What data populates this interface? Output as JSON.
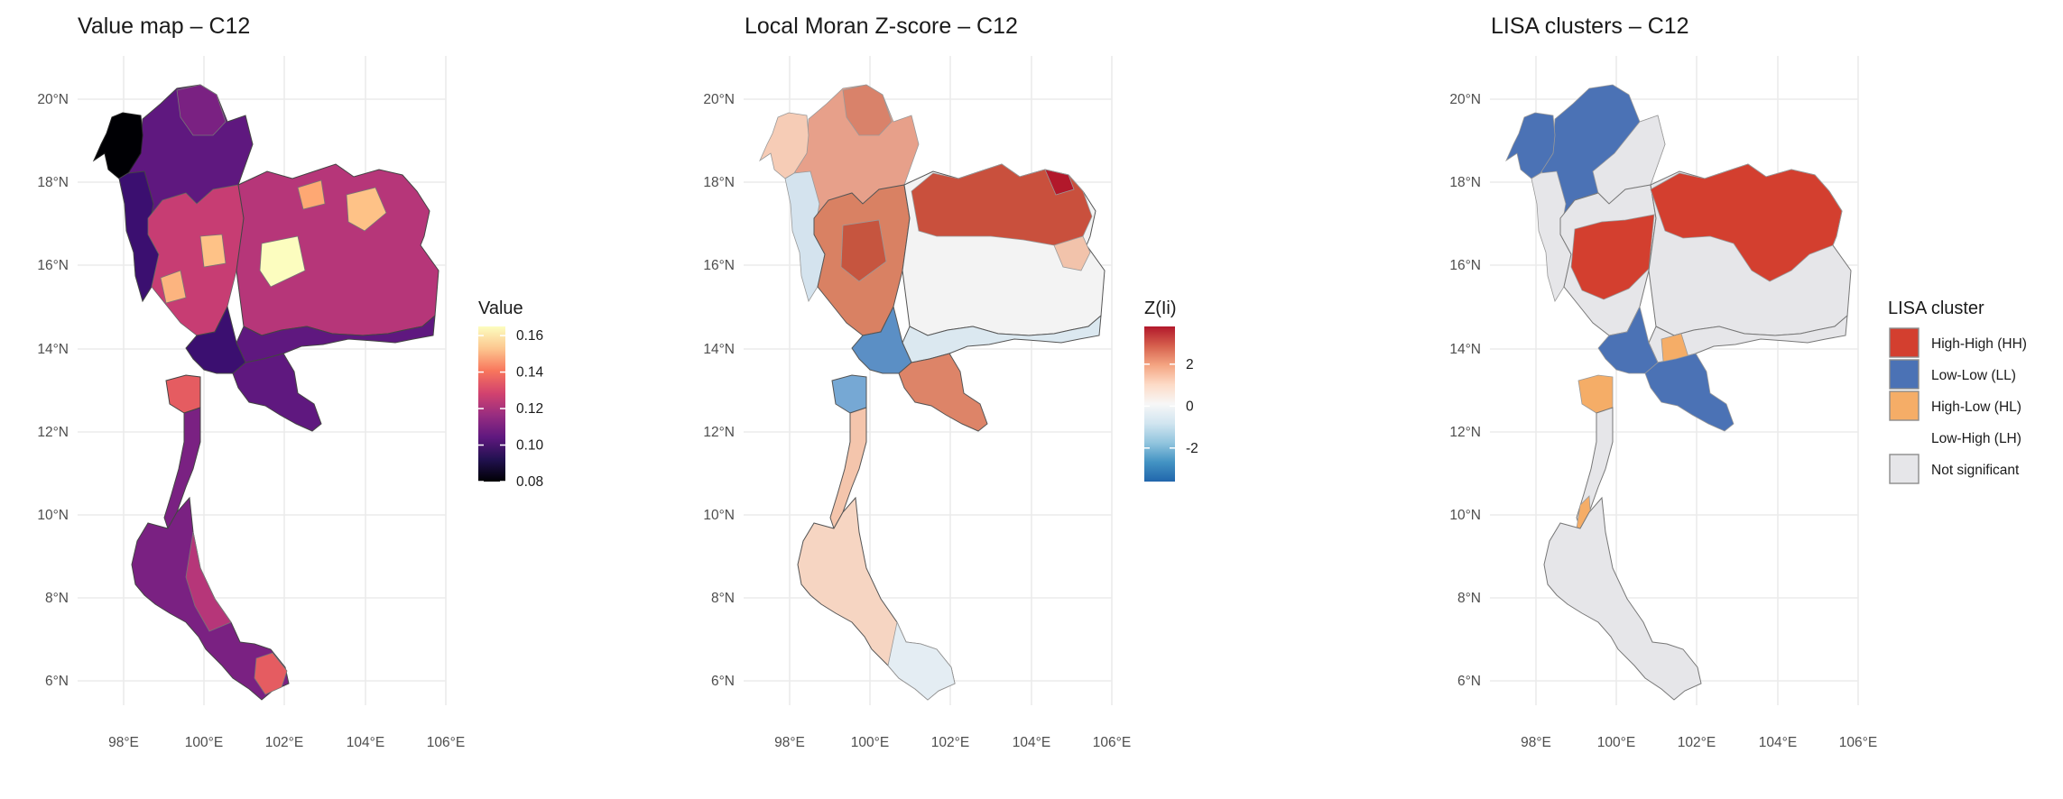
{
  "panels": [
    {
      "title": "Value map – C12",
      "x_ticks": [
        "98°E",
        "100°E",
        "102°E",
        "104°E",
        "106°E"
      ],
      "y_ticks": [
        "20°N",
        "18°N",
        "16°N",
        "14°N",
        "12°N",
        "10°N",
        "8°N",
        "6°N"
      ],
      "legend": {
        "title": "Value",
        "type": "continuous",
        "labels": [
          "0.16",
          "0.14",
          "0.12",
          "0.10",
          "0.08"
        ],
        "range": [
          0.08,
          0.165
        ],
        "colors": [
          "#fcfdbf",
          "#fcc68f",
          "#f8765c",
          "#d3436e",
          "#982d80",
          "#5f187f",
          "#221150",
          "#000004"
        ]
      }
    },
    {
      "title": "Local Moran Z-score – C12",
      "x_ticks": [
        "98°E",
        "100°E",
        "102°E",
        "104°E",
        "106°E"
      ],
      "y_ticks": [
        "20°N",
        "18°N",
        "16°N",
        "14°N",
        "12°N",
        "10°N",
        "8°N",
        "6°N"
      ],
      "legend": {
        "title": "Z(Ii)",
        "type": "continuous",
        "labels": [
          "2",
          "0",
          "-2"
        ],
        "range": [
          -3.6,
          3.8
        ],
        "colors": [
          "#b2182b",
          "#d6604d",
          "#f4a582",
          "#fddbc7",
          "#f7f7f7",
          "#d1e5f0",
          "#92c5de",
          "#4393c3",
          "#2166ac"
        ]
      }
    },
    {
      "title": "LISA clusters – C12",
      "x_ticks": [
        "98°E",
        "100°E",
        "102°E",
        "104°E",
        "106°E"
      ],
      "y_ticks": [
        "20°N",
        "18°N",
        "16°N",
        "14°N",
        "12°N",
        "10°N",
        "8°N",
        "6°N"
      ],
      "legend": {
        "title": "LISA cluster",
        "type": "categorical",
        "items": [
          {
            "label": "High-High (HH)",
            "color": "#d33f2f"
          },
          {
            "label": "Low-Low (LL)",
            "color": "#4b72b5"
          },
          {
            "label": "High-Low (HL)",
            "color": "#f5ad67"
          },
          {
            "label": "Low-High (LH)",
            "color": "#ffffff"
          },
          {
            "label": "Not significant",
            "color": "#e6e6e9"
          }
        ]
      }
    }
  ]
}
